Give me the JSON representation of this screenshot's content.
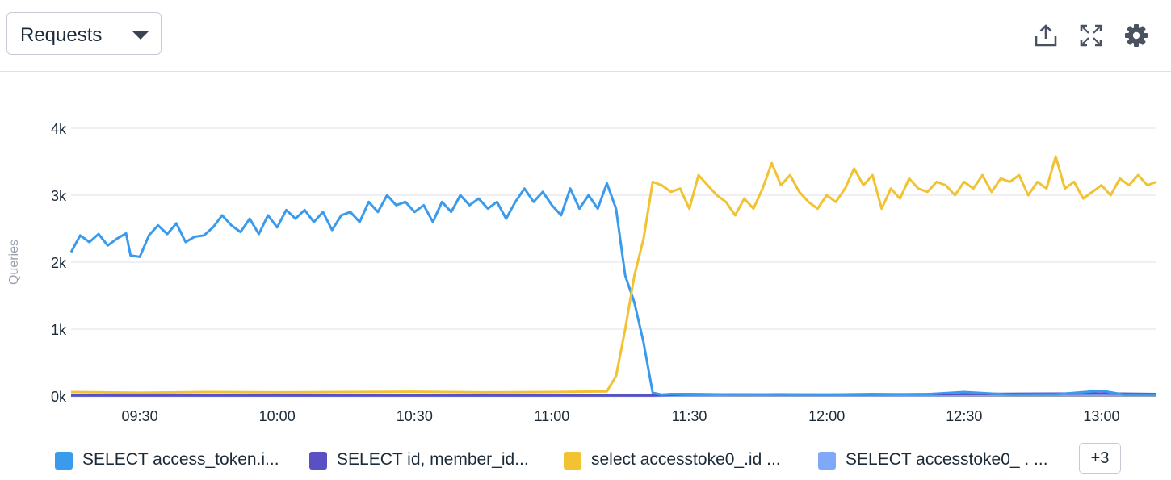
{
  "toolbar": {
    "metric_select": "Requests",
    "icons": [
      "export-icon",
      "expand-icon",
      "gear-icon"
    ]
  },
  "legend": {
    "items": [
      {
        "label": "SELECT access_token.i...",
        "color": "#3a9bec"
      },
      {
        "label": "SELECT id, member_id...",
        "color": "#5b4fc4"
      },
      {
        "label": "select accesstoke0_.id ...",
        "color": "#f1c232"
      },
      {
        "label": "SELECT accesstoke0_ . ...",
        "color": "#7fa8f8"
      }
    ],
    "more_label": "+3"
  },
  "chart_data": {
    "type": "line",
    "ylabel": "Queries",
    "ylim": [
      0,
      4000
    ],
    "yticks": [
      0,
      1000,
      2000,
      3000,
      4000
    ],
    "ytick_labels": [
      "0k",
      "1k",
      "2k",
      "3k",
      "4k"
    ],
    "xlim": [
      "09:15",
      "13:12"
    ],
    "xticks": [
      "09:30",
      "10:00",
      "10:30",
      "11:00",
      "11:30",
      "12:00",
      "12:30",
      "13:00"
    ],
    "series": [
      {
        "name": "SELECT access_token.i...",
        "color": "#3a9bec",
        "points": [
          [
            "09:15",
            2150
          ],
          [
            "09:17",
            2400
          ],
          [
            "09:19",
            2300
          ],
          [
            "09:21",
            2420
          ],
          [
            "09:23",
            2250
          ],
          [
            "09:25",
            2350
          ],
          [
            "09:27",
            2430
          ],
          [
            "09:28",
            2100
          ],
          [
            "09:30",
            2080
          ],
          [
            "09:32",
            2400
          ],
          [
            "09:34",
            2550
          ],
          [
            "09:36",
            2420
          ],
          [
            "09:38",
            2580
          ],
          [
            "09:40",
            2300
          ],
          [
            "09:42",
            2380
          ],
          [
            "09:44",
            2400
          ],
          [
            "09:46",
            2520
          ],
          [
            "09:48",
            2700
          ],
          [
            "09:50",
            2550
          ],
          [
            "09:52",
            2450
          ],
          [
            "09:54",
            2650
          ],
          [
            "09:56",
            2420
          ],
          [
            "09:58",
            2700
          ],
          [
            "10:00",
            2520
          ],
          [
            "10:02",
            2780
          ],
          [
            "10:04",
            2650
          ],
          [
            "10:06",
            2780
          ],
          [
            "10:08",
            2600
          ],
          [
            "10:10",
            2750
          ],
          [
            "10:12",
            2480
          ],
          [
            "10:14",
            2700
          ],
          [
            "10:16",
            2750
          ],
          [
            "10:18",
            2600
          ],
          [
            "10:20",
            2900
          ],
          [
            "10:22",
            2750
          ],
          [
            "10:24",
            3000
          ],
          [
            "10:26",
            2850
          ],
          [
            "10:28",
            2900
          ],
          [
            "10:30",
            2750
          ],
          [
            "10:32",
            2850
          ],
          [
            "10:34",
            2600
          ],
          [
            "10:36",
            2900
          ],
          [
            "10:38",
            2750
          ],
          [
            "10:40",
            3000
          ],
          [
            "10:42",
            2850
          ],
          [
            "10:44",
            2950
          ],
          [
            "10:46",
            2800
          ],
          [
            "10:48",
            2900
          ],
          [
            "10:50",
            2650
          ],
          [
            "10:52",
            2900
          ],
          [
            "10:54",
            3100
          ],
          [
            "10:56",
            2900
          ],
          [
            "10:58",
            3050
          ],
          [
            "11:00",
            2850
          ],
          [
            "11:02",
            2700
          ],
          [
            "11:04",
            3100
          ],
          [
            "11:06",
            2800
          ],
          [
            "11:08",
            3000
          ],
          [
            "11:10",
            2800
          ],
          [
            "11:12",
            3180
          ],
          [
            "11:14",
            2800
          ],
          [
            "11:16",
            1800
          ],
          [
            "11:18",
            1400
          ],
          [
            "11:20",
            800
          ],
          [
            "11:22",
            50
          ],
          [
            "11:24",
            20
          ],
          [
            "11:26",
            30
          ],
          [
            "11:30",
            30
          ],
          [
            "11:40",
            20
          ],
          [
            "11:50",
            25
          ],
          [
            "12:00",
            20
          ],
          [
            "12:10",
            30
          ],
          [
            "12:20",
            20
          ],
          [
            "12:30",
            60
          ],
          [
            "12:40",
            20
          ],
          [
            "12:50",
            25
          ],
          [
            "13:00",
            80
          ],
          [
            "13:05",
            20
          ],
          [
            "13:12",
            20
          ]
        ]
      },
      {
        "name": "SELECT id, member_id...",
        "color": "#5b4fc4",
        "points": [
          [
            "09:15",
            10
          ],
          [
            "11:00",
            10
          ],
          [
            "11:22",
            10
          ],
          [
            "11:30",
            25
          ],
          [
            "12:00",
            20
          ],
          [
            "12:30",
            30
          ],
          [
            "13:00",
            40
          ],
          [
            "13:12",
            30
          ]
        ]
      },
      {
        "name": "select accesstoke0_.id ...",
        "color": "#f1c232",
        "points": [
          [
            "09:15",
            60
          ],
          [
            "09:30",
            50
          ],
          [
            "09:45",
            60
          ],
          [
            "10:00",
            55
          ],
          [
            "10:15",
            60
          ],
          [
            "10:30",
            65
          ],
          [
            "10:45",
            55
          ],
          [
            "11:00",
            60
          ],
          [
            "11:12",
            70
          ],
          [
            "11:14",
            300
          ],
          [
            "11:16",
            1000
          ],
          [
            "11:18",
            1800
          ],
          [
            "11:20",
            2350
          ],
          [
            "11:22",
            3200
          ],
          [
            "11:24",
            3150
          ],
          [
            "11:26",
            3050
          ],
          [
            "11:28",
            3100
          ],
          [
            "11:30",
            2800
          ],
          [
            "11:32",
            3300
          ],
          [
            "11:34",
            3150
          ],
          [
            "11:36",
            3000
          ],
          [
            "11:38",
            2900
          ],
          [
            "11:40",
            2700
          ],
          [
            "11:42",
            2950
          ],
          [
            "11:44",
            2800
          ],
          [
            "11:46",
            3100
          ],
          [
            "11:48",
            3480
          ],
          [
            "11:50",
            3150
          ],
          [
            "11:52",
            3300
          ],
          [
            "11:54",
            3050
          ],
          [
            "11:56",
            2900
          ],
          [
            "11:58",
            2800
          ],
          [
            "12:00",
            3000
          ],
          [
            "12:02",
            2900
          ],
          [
            "12:04",
            3100
          ],
          [
            "12:06",
            3400
          ],
          [
            "12:08",
            3150
          ],
          [
            "12:10",
            3300
          ],
          [
            "12:12",
            2800
          ],
          [
            "12:14",
            3100
          ],
          [
            "12:16",
            2950
          ],
          [
            "12:18",
            3250
          ],
          [
            "12:20",
            3100
          ],
          [
            "12:22",
            3050
          ],
          [
            "12:24",
            3200
          ],
          [
            "12:26",
            3150
          ],
          [
            "12:28",
            3000
          ],
          [
            "12:30",
            3200
          ],
          [
            "12:32",
            3100
          ],
          [
            "12:34",
            3300
          ],
          [
            "12:36",
            3050
          ],
          [
            "12:38",
            3250
          ],
          [
            "12:40",
            3200
          ],
          [
            "12:42",
            3300
          ],
          [
            "12:44",
            3000
          ],
          [
            "12:46",
            3200
          ],
          [
            "12:48",
            3100
          ],
          [
            "12:50",
            3580
          ],
          [
            "12:52",
            3100
          ],
          [
            "12:54",
            3200
          ],
          [
            "12:56",
            2950
          ],
          [
            "12:58",
            3050
          ],
          [
            "13:00",
            3150
          ],
          [
            "13:02",
            3000
          ],
          [
            "13:04",
            3250
          ],
          [
            "13:06",
            3150
          ],
          [
            "13:08",
            3300
          ],
          [
            "13:10",
            3150
          ],
          [
            "13:12",
            3200
          ]
        ]
      },
      {
        "name": "SELECT accesstoke0_ . ...",
        "color": "#7fa8f8",
        "points": [
          [
            "09:15",
            5
          ],
          [
            "11:22",
            5
          ],
          [
            "11:40",
            15
          ],
          [
            "12:20",
            10
          ],
          [
            "12:50",
            20
          ],
          [
            "13:12",
            15
          ]
        ]
      }
    ]
  }
}
